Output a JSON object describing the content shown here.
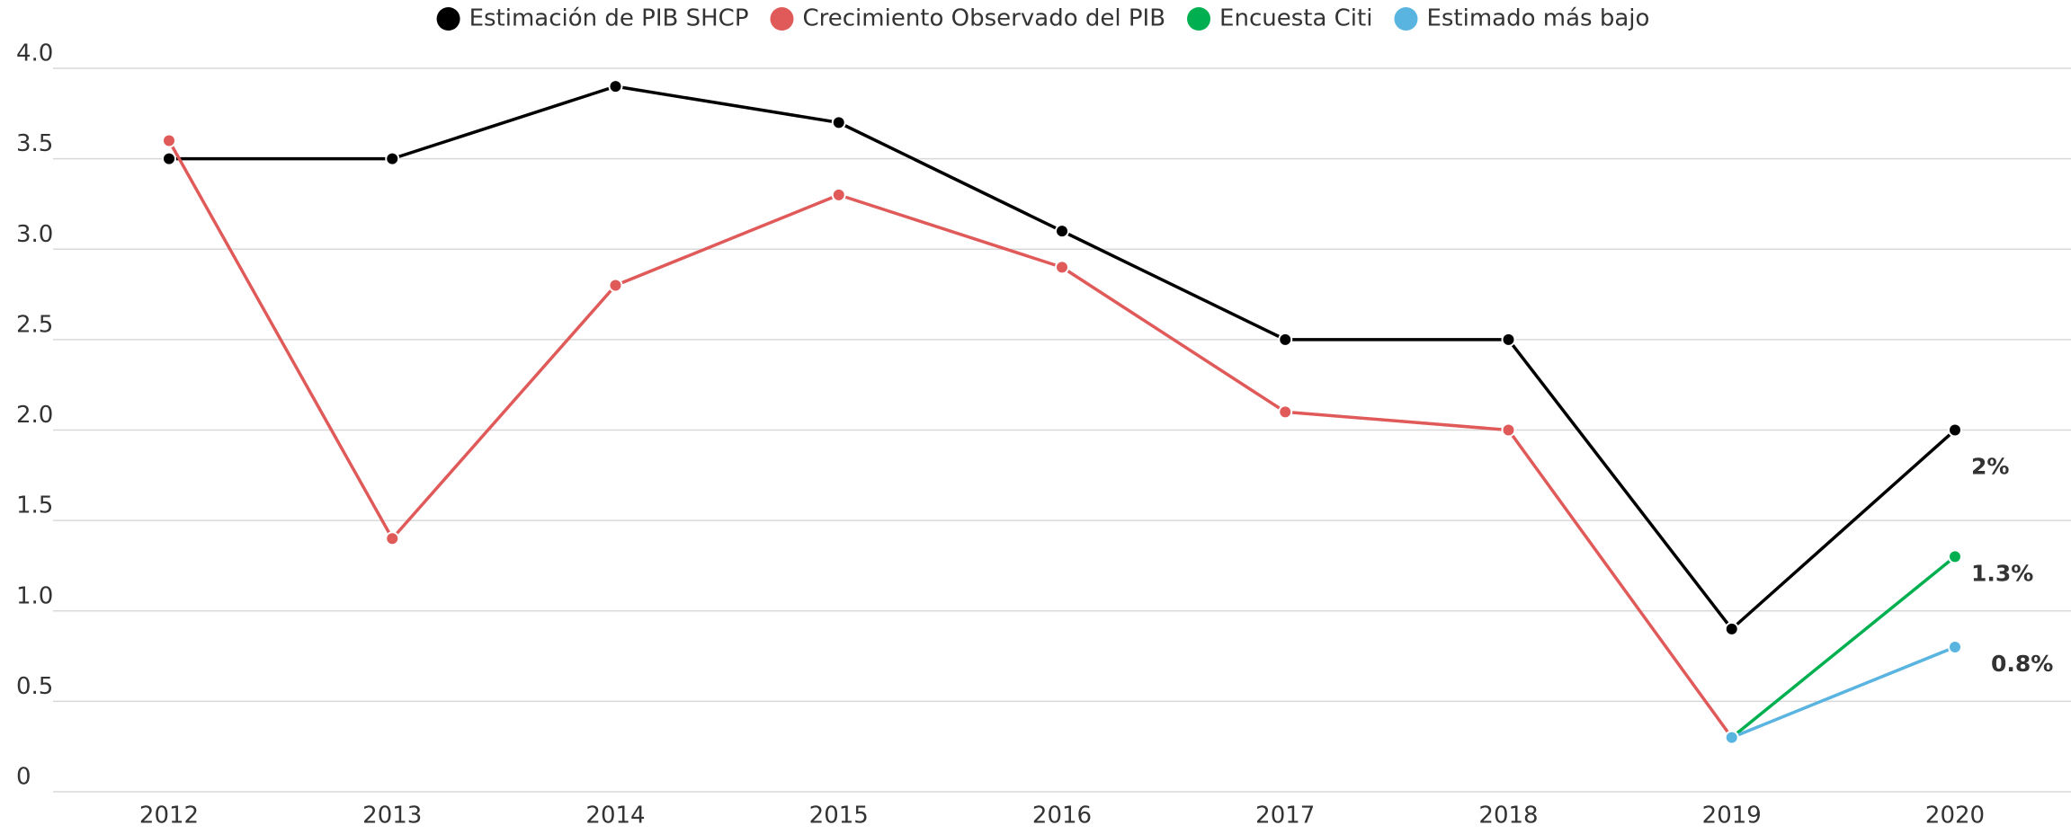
{
  "chart_data": {
    "type": "line",
    "categories": [
      "2012",
      "2013",
      "2014",
      "2015",
      "2016",
      "2017",
      "2018",
      "2019",
      "2020"
    ],
    "series": [
      {
        "name": "Estimación de PIB SHCP",
        "color": "#000000",
        "values": [
          3.5,
          3.5,
          3.9,
          3.7,
          3.1,
          2.5,
          2.5,
          0.9,
          2.0
        ],
        "value_labels": [
          null,
          null,
          null,
          null,
          null,
          null,
          null,
          null,
          "2%"
        ]
      },
      {
        "name": "Crecimiento Observado del PIB",
        "color": "#e05a5a",
        "values": [
          3.6,
          1.4,
          2.8,
          3.3,
          2.9,
          2.1,
          2.0,
          0.3,
          null
        ]
      },
      {
        "name": "Encuesta Citi",
        "color": "#00b050",
        "values": [
          null,
          null,
          null,
          null,
          null,
          null,
          null,
          0.3,
          1.3
        ],
        "value_labels": [
          null,
          null,
          null,
          null,
          null,
          null,
          null,
          null,
          "1.3%"
        ]
      },
      {
        "name": "Estimado más bajo",
        "color": "#5ab4e0",
        "values": [
          null,
          null,
          null,
          null,
          null,
          null,
          null,
          0.3,
          0.8
        ],
        "value_labels": [
          null,
          null,
          null,
          null,
          null,
          null,
          null,
          null,
          "0.8%"
        ]
      }
    ],
    "ylim": [
      0,
      4
    ],
    "yticks": [
      0,
      0.5,
      {
        "value": 1,
        "label": "1.0"
      },
      1.5,
      {
        "value": 2,
        "label": "2.0"
      },
      2.5,
      {
        "value": 3,
        "label": "3.0"
      },
      3.5,
      {
        "value": 4,
        "label": "4.0"
      }
    ],
    "grid": true,
    "legend": "top"
  }
}
